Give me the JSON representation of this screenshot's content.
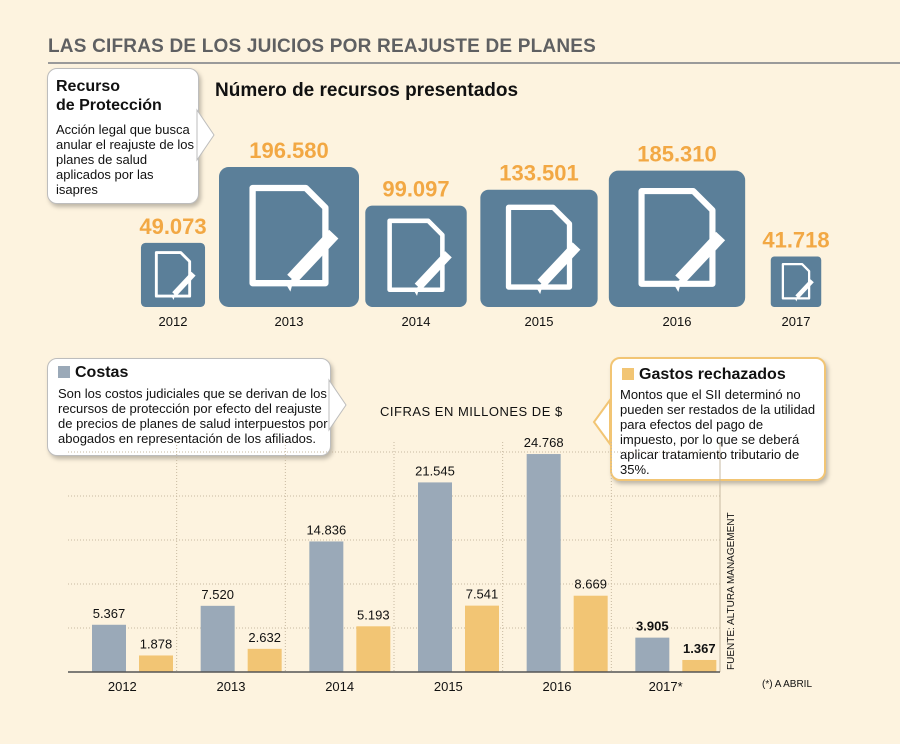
{
  "header": {
    "title": "LAS CIFRAS DE LOS JUICIOS POR REAJUSTE DE PLANES",
    "subtitle": "Número de recursos presentados"
  },
  "callouts": {
    "recurso": {
      "title_line1": "Recurso",
      "title_line2": "de Protección",
      "body": "Acción legal que busca anular el reajuste de los planes de salud aplicados por las isapres"
    },
    "costas": {
      "title": "Costas",
      "body": "Son los costos judiciales que se derivan de los recursos de protección por efecto del reajuste de precios de planes de salud interpuestos por abogados en representación de los afiliados."
    },
    "gastos": {
      "title": "Gastos rechazados",
      "body": "Montos que el SII determinó no pueden ser restados de la utilidad para efectos del pago de impuesto, por lo que se deberá aplicar tratamiento tributario de 35%."
    }
  },
  "colors": {
    "costas": "#9aa9b8",
    "gastos": "#f2c574",
    "recursos_box": "#5b7f99",
    "orange_text": "#f2a844"
  },
  "unit_note": "CIFRAS EN MILLONES DE $",
  "source": "FUENTE: ALTURA MANAGEMENT",
  "footnote": "(*) A ABRIL",
  "chart_data": [
    {
      "type": "bar",
      "title": "Número de recursos presentados",
      "categories": [
        "2012",
        "2013",
        "2014",
        "2015",
        "2016",
        "2017"
      ],
      "values": [
        49073,
        196580,
        99097,
        133501,
        185310,
        41718
      ],
      "value_labels": [
        "49.073",
        "196.580",
        "99.097",
        "133.501",
        "185.310",
        "41.718"
      ],
      "icon": "document-pencil-icon"
    },
    {
      "type": "bar",
      "categories": [
        "2012",
        "2013",
        "2014",
        "2015",
        "2016",
        "2017*"
      ],
      "ylabel": "CIFRAS EN MILLONES DE $",
      "ylim": [
        0,
        25000
      ],
      "grid": true,
      "series": [
        {
          "name": "Costas",
          "values": [
            5367,
            7520,
            14836,
            21545,
            24768,
            3905
          ],
          "labels": [
            "5.367",
            "7.520",
            "14.836",
            "21.545",
            "24.768",
            "3.905"
          ]
        },
        {
          "name": "Gastos rechazados",
          "values": [
            1878,
            2632,
            5193,
            7541,
            8669,
            1367
          ],
          "labels": [
            "1.878",
            "2.632",
            "5.193",
            "7.541",
            "8.669",
            "1.367"
          ]
        }
      ]
    }
  ]
}
